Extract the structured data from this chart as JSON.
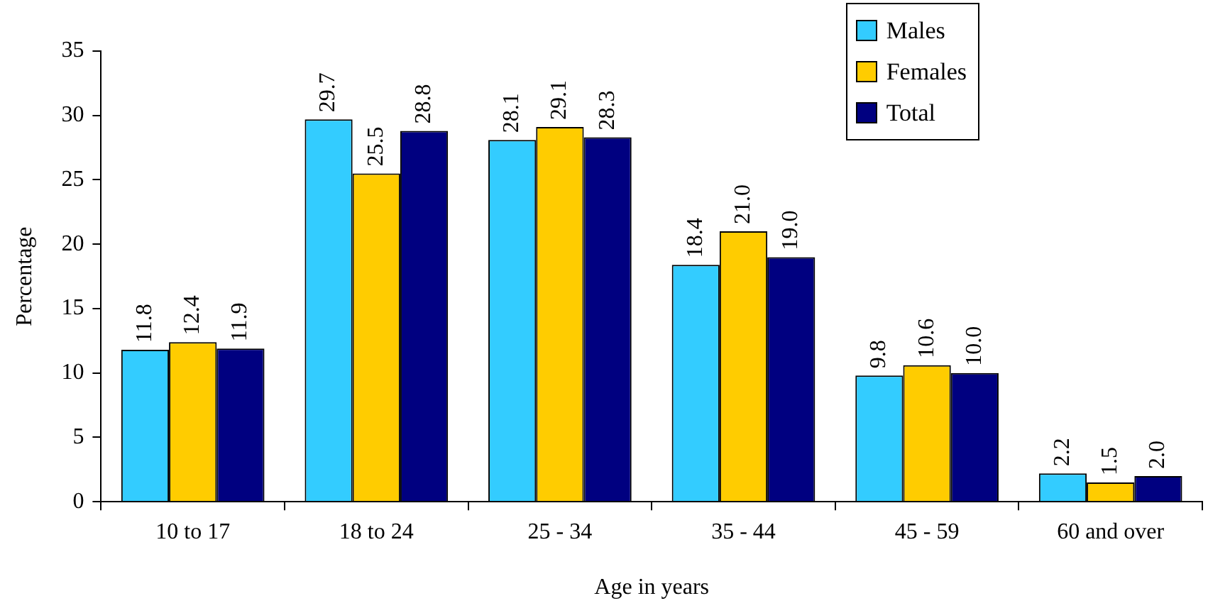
{
  "chart_data": {
    "type": "bar",
    "xlabel": "Age in years",
    "ylabel": "Percentage",
    "categories": [
      "10 to 17",
      "18 to 24",
      "25 - 34",
      "35 - 44",
      "45 - 59",
      "60 and over"
    ],
    "series": [
      {
        "name": "Males",
        "color": "#33ccff",
        "values": [
          11.8,
          29.7,
          28.1,
          18.4,
          9.8,
          2.2
        ],
        "value_labels": [
          "11.8",
          "29.7",
          "28.1",
          "18.4",
          "9.8",
          "2.2"
        ]
      },
      {
        "name": "Females",
        "color": "#ffcc00",
        "values": [
          12.4,
          25.5,
          29.1,
          21.0,
          10.6,
          1.5
        ],
        "value_labels": [
          "12.4",
          "25.5",
          "29.1",
          "21.0",
          "10.6",
          "1.5"
        ]
      },
      {
        "name": "Total",
        "color": "#000080",
        "values": [
          11.9,
          28.8,
          28.3,
          19.0,
          10.0,
          2.0
        ],
        "value_labels": [
          "11.9",
          "28.8",
          "28.3",
          "19.0",
          "10.0",
          "2.0"
        ]
      }
    ],
    "ylim": [
      0,
      35
    ],
    "yticks": [
      0,
      5,
      10,
      15,
      20,
      25,
      30,
      35
    ],
    "grid": false,
    "legend": "top right"
  }
}
